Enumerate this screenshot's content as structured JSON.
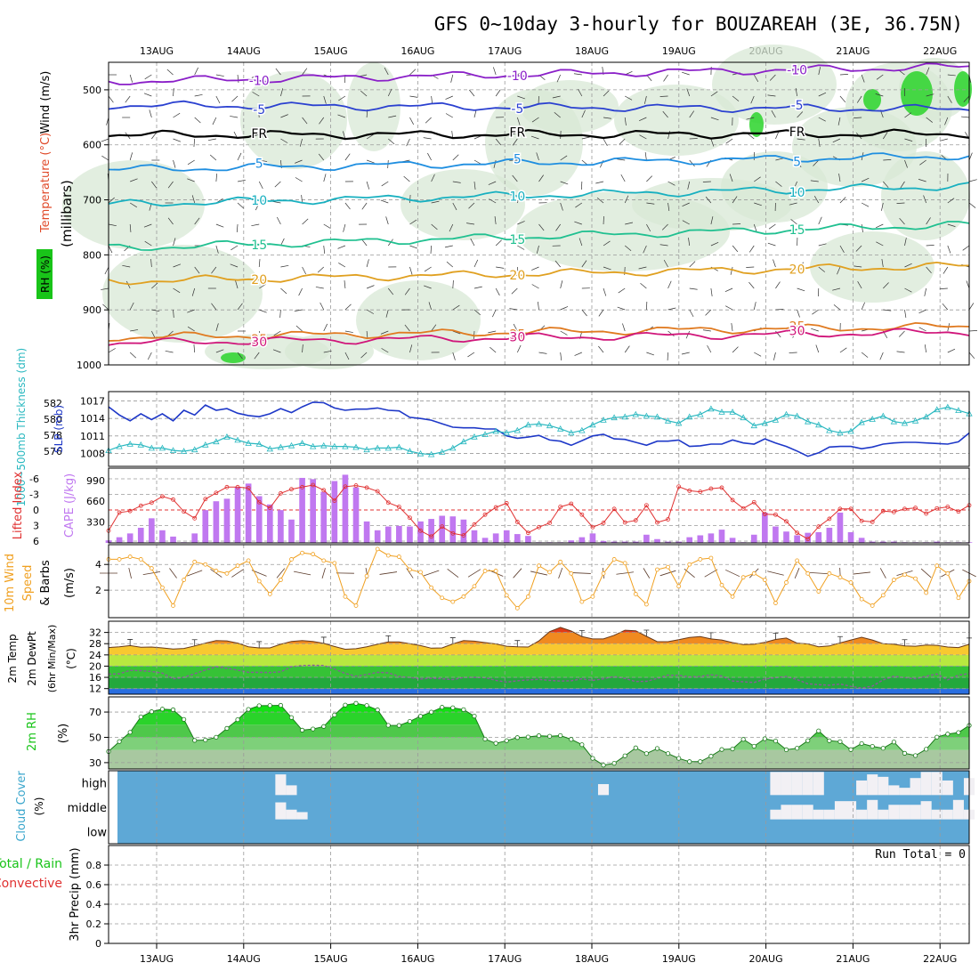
{
  "title": "GFS 0~10day 3-hourly for BOUZAREAH (3E, 36.75N)",
  "colors": {
    "wind_axis": "#000000",
    "temperature_axis": "#e04a2a",
    "rh_badge": "#19c419",
    "slp": "#1e38c8",
    "thickness": "#2ab8c0",
    "lifted_index": "#e03030",
    "cape": "#c078f0",
    "wind_speed": "#f0a020",
    "rh2m": "#19c419",
    "cloud": "#5ea8d6",
    "cloud_text": "#3aa6cc",
    "precip_total": "#19c419",
    "precip_convective": "#e03030"
  },
  "chart_data": {
    "type": "meteogram",
    "dates": [
      "13AUG",
      "14AUG",
      "15AUG",
      "16AUG",
      "17AUG",
      "18AUG",
      "19AUG",
      "20AUG",
      "21AUG",
      "22AUG"
    ],
    "time_steps": 81,
    "panels": [
      {
        "id": "upper-air",
        "type": "contour",
        "ylabel": "(millibars)",
        "ylabel_parts": [
          "Wind (m/s)",
          "Temperature (°C)",
          "RH (%)"
        ],
        "yticks": [
          500,
          600,
          700,
          800,
          900,
          1000
        ],
        "ylim": [
          450,
          1000
        ],
        "isotherm_labels": [
          "-10",
          "-5",
          "FR",
          "5",
          "10",
          "15",
          "20",
          "25",
          "30"
        ],
        "isotherms": [
          {
            "label": "-10",
            "color": "#8a1fc8",
            "p_start": 485,
            "p_end": 458
          },
          {
            "label": "-5",
            "color": "#2a40d0",
            "p_start": 528,
            "p_end": 535
          },
          {
            "label": "FR",
            "color": "#000000",
            "p_start": 582,
            "p_end": 580
          },
          {
            "label": "5",
            "color": "#1e8ee0",
            "p_start": 645,
            "p_end": 620
          },
          {
            "label": "10",
            "color": "#18b0c0",
            "p_start": 708,
            "p_end": 675
          },
          {
            "label": "15",
            "color": "#20c090",
            "p_start": 788,
            "p_end": 745
          },
          {
            "label": "20",
            "color": "#e0a020",
            "p_start": 848,
            "p_end": 820
          },
          {
            "label": "25",
            "color": "#e07a20",
            "p_start": 950,
            "p_end": 930
          },
          {
            "label": "30",
            "color": "#d0157a",
            "p_start": 960,
            "p_end": 940
          }
        ]
      },
      {
        "id": "slp-thickness",
        "type": "line",
        "ylabel_slp": "SLP (mb)",
        "ylabel_thk": "1000~500mb Thickness (dm)",
        "slp_ticks": [
          1008,
          1011,
          1014,
          1017
        ],
        "thk_ticks": [
          576,
          578,
          580,
          582
        ],
        "series": [
          {
            "name": "SLP",
            "values": [
              1016,
              1014.6,
              1013.6,
              1014.8,
              1013.8,
              1014.8,
              1013.6,
              1015.4,
              1014.6,
              1016.3,
              1015.4,
              1015.7,
              1014.9,
              1014.5,
              1014.3,
              1014.8,
              1015.7,
              1015,
              1016,
              1016.8,
              1016.7,
              1015.8,
              1015.4,
              1015.6,
              1015.6,
              1015.8,
              1015.4,
              1015.3,
              1014.2,
              1014,
              1013.7,
              1013.1,
              1012.5,
              1012.4,
              1012.4,
              1012.2,
              1012.2,
              1011,
              1010.6,
              1010.8,
              1011.1,
              1010.3,
              1010.1,
              1009.4,
              1010.2,
              1011,
              1011.3,
              1010.5,
              1010.4,
              1009.9,
              1009.4,
              1010.1,
              1010.1,
              1010.3,
              1009.2,
              1009.3,
              1009.6,
              1009.6,
              1010.3,
              1009.8,
              1009.6,
              1010.5,
              1009.8,
              1009.2,
              1008.4,
              1007.5,
              1008.1,
              1009.1,
              1009.2,
              1009.2,
              1008.8,
              1009.1,
              1009.6,
              1009.8,
              1009.9,
              1009.9,
              1009.8,
              1009.7,
              1009.6,
              1010,
              1011.5
            ]
          },
          {
            "name": "Thickness",
            "values": [
              576.1,
              576.6,
              576.9,
              576.8,
              576.4,
              576.4,
              576.1,
              576,
              576.2,
              576.8,
              577.2,
              577.8,
              577.4,
              577,
              576.9,
              576.3,
              576.5,
              576.7,
              577,
              576.6,
              576.7,
              576.6,
              576.6,
              576.5,
              576.2,
              576.4,
              576.4,
              576.5,
              576,
              575.7,
              575.6,
              575.9,
              576.4,
              577.2,
              577.8,
              578.1,
              578.5,
              578.3,
              578.6,
              579.3,
              579.4,
              579.2,
              578.8,
              578.3,
              578.6,
              579.3,
              579.9,
              580.2,
              580.3,
              580.6,
              580.4,
              580.3,
              579.8,
              579.5,
              580.3,
              580.6,
              581.3,
              580.9,
              580.9,
              580.2,
              579.2,
              579.5,
              579.9,
              580.6,
              580.4,
              579.7,
              579.3,
              578.6,
              578.3,
              578.5,
              579.6,
              580,
              580.4,
              579.7,
              579.5,
              579.8,
              580.3,
              581.2,
              581.5,
              581.1,
              580.7
            ]
          }
        ]
      },
      {
        "id": "li-cape",
        "type": "bar+line",
        "ylabel_li": "Lifted Index",
        "ylabel_cape": "CAPE (J/kg)",
        "li_ticks": [
          "-6",
          "-3",
          "0",
          "3",
          "6"
        ],
        "cape_ticks": [
          "330",
          "660",
          "990"
        ],
        "lifted_index": [
          4,
          0.5,
          0.2,
          -0.8,
          -1.4,
          -2.6,
          -2,
          0.3,
          1.6,
          -2.1,
          -3.3,
          -4.4,
          -4.4,
          -4.2,
          -1.5,
          -0.4,
          -3.2,
          -4,
          -4.4,
          -4.8,
          -3.8,
          -1.8,
          -4.5,
          -4.7,
          -4.3,
          -3.6,
          -1.4,
          -0.6,
          1.5,
          4,
          5.1,
          3.2,
          4.5,
          4.9,
          2.8,
          0.9,
          -0.5,
          -1.3,
          2.3,
          4.4,
          3.3,
          2.5,
          -0.6,
          -1.2,
          0.9,
          3.3,
          2.5,
          -0.2,
          2.4,
          2,
          -0.9,
          2.4,
          1.8,
          -4.5,
          -3.7,
          -3.5,
          -4.1,
          -4.3,
          -1.9,
          -0.3,
          -1.5,
          0.8,
          0.9,
          2.2,
          4.4,
          5.6,
          3.2,
          1.7,
          -0.2,
          -0.2,
          2.1,
          2.3,
          0.2,
          0.4,
          -0.2,
          -0.4,
          0.7,
          -0.3,
          -0.6,
          0.3,
          -0.9
        ],
        "cape": [
          40,
          90,
          150,
          240,
          390,
          200,
          100,
          10,
          150,
          520,
          660,
          700,
          880,
          940,
          740,
          610,
          520,
          370,
          1030,
          1010,
          810,
          980,
          1080,
          880,
          340,
          200,
          260,
          270,
          260,
          340,
          380,
          430,
          420,
          370,
          200,
          80,
          150,
          200,
          140,
          110,
          10,
          10,
          10,
          40,
          90,
          150,
          30,
          20,
          20,
          20,
          130,
          60,
          20,
          20,
          90,
          120,
          150,
          210,
          80,
          10,
          130,
          480,
          260,
          180,
          120,
          160,
          170,
          240,
          480,
          170,
          80,
          20,
          20,
          20,
          10,
          10,
          10,
          20,
          10,
          10,
          10
        ]
      },
      {
        "id": "wind-10m",
        "type": "line",
        "ylabel": "10m Wind Speed & Barbs (m/s)",
        "yticks": [
          2,
          4
        ],
        "ylim": [
          0,
          5.4
        ],
        "values": [
          4.4,
          4.4,
          4.6,
          4.4,
          3.7,
          2.2,
          0.8,
          2.8,
          4.2,
          4,
          3.5,
          3.3,
          3.9,
          4.3,
          2.7,
          1.7,
          2.8,
          4.4,
          4.9,
          4.8,
          4.3,
          4.1,
          1.5,
          0.8,
          3.1,
          5.2,
          4.7,
          4.6,
          3.6,
          3.4,
          2.2,
          1.4,
          1.1,
          1.5,
          2.3,
          3.5,
          3.5,
          1.6,
          0.6,
          1.5,
          3.9,
          3.4,
          4.2,
          3.3,
          1.1,
          1.5,
          3.3,
          4.4,
          4.1,
          1.7,
          0.9,
          3.6,
          3.8,
          2.3,
          4,
          4.4,
          4.5,
          2.4,
          1.5,
          3,
          3.3,
          2.8,
          1,
          2.6,
          4.3,
          3.3,
          1.9,
          3.3,
          3,
          2.6,
          1.3,
          0.8,
          1.6,
          2.8,
          3.2,
          2.9,
          1.8,
          3.9,
          3.3,
          1.4,
          2.7
        ]
      },
      {
        "id": "temp-2m",
        "type": "area",
        "ylabel": "2m Temp 2m DewPt (6hr Min/Max) (°C)",
        "yticks": [
          12,
          16,
          20,
          24,
          28,
          32
        ],
        "ylim": [
          10,
          36
        ],
        "temperature": [
          26.6,
          26.9,
          27.3,
          26.7,
          26.8,
          26.5,
          26.1,
          26.3,
          27.2,
          28.2,
          29.1,
          29,
          28.2,
          26.9,
          26.5,
          26.5,
          27.8,
          28.8,
          29.1,
          28.8,
          28.1,
          27,
          26,
          26.2,
          26.9,
          27.8,
          28.6,
          28.6,
          28,
          27.3,
          26.4,
          26.5,
          27.9,
          29.1,
          28.9,
          28.4,
          27.9,
          27.1,
          26.9,
          26.8,
          29,
          32.3,
          33.8,
          32.5,
          30.5,
          29.7,
          29.7,
          31,
          32.8,
          32.6,
          30.6,
          28.7,
          28.7,
          29.4,
          30.2,
          30.5,
          29.7,
          29.3,
          28.4,
          27.7,
          27.8,
          28.5,
          29.5,
          30,
          28.2,
          27.9,
          26.9,
          27.2,
          28.3,
          29.3,
          30.3,
          29.3,
          28,
          27.8,
          27.2,
          27.1,
          27.5,
          27.4,
          26.8,
          26.6,
          27.8
        ],
        "dewpoint": [
          17.1,
          17.3,
          18.5,
          18.4,
          18.1,
          17.5,
          15.5,
          16,
          17.3,
          18.6,
          19.8,
          19.2,
          18.6,
          17.8,
          17.8,
          17.7,
          18,
          19.8,
          20.2,
          20.3,
          20.2,
          19,
          17.4,
          16.4,
          17,
          17.8,
          17.6,
          16.3,
          16,
          15.4,
          15.7,
          15.5,
          15.2,
          16,
          16,
          15.9,
          14.9,
          14.3,
          14.8,
          15.1,
          15.3,
          14.9,
          14.7,
          14.8,
          15.5,
          14.9,
          15.5,
          16.3,
          15.6,
          14.5,
          14.6,
          15.6,
          16.8,
          16.7,
          16.2,
          16.3,
          16.9,
          16.5,
          14.7,
          14.4,
          14.2,
          15.4,
          15.9,
          16.3,
          15.2,
          13.7,
          13.4,
          13.2,
          13.6,
          12.8,
          12.2,
          12.9,
          15.1,
          16.4,
          15.9,
          15.5,
          16.4,
          17.2,
          15.1,
          16.8,
          17.4
        ]
      },
      {
        "id": "rh-2m",
        "type": "area",
        "ylabel": "2m RH (%)",
        "yticks": [
          30,
          50,
          70
        ],
        "ylim": [
          25,
          82
        ],
        "values": [
          38.8,
          46.7,
          54,
          66.2,
          70.3,
          72.3,
          71.8,
          64.2,
          47.6,
          47.9,
          50.1,
          57.1,
          64,
          72.1,
          75,
          75.2,
          75.3,
          65.7,
          55.7,
          56.6,
          58.6,
          67.7,
          75.5,
          76.9,
          75.2,
          71.7,
          59.5,
          59.4,
          62.6,
          66.7,
          70,
          73.8,
          73.4,
          71.9,
          66.8,
          48.6,
          45.3,
          47.4,
          49.8,
          50.3,
          51.3,
          50.9,
          51.4,
          48.4,
          44.2,
          33.4,
          28,
          29.5,
          35.4,
          41.7,
          37.2,
          41.2,
          37.2,
          33.4,
          30.8,
          30.8,
          35.1,
          40.4,
          40.8,
          48.4,
          43,
          48.9,
          47.1,
          40.2,
          41.4,
          47.4,
          55.1,
          47.3,
          46.6,
          40.3,
          45.1,
          42.9,
          41.4,
          46.3,
          37.4,
          35.6,
          40.6,
          50.2,
          52.6,
          53.8,
          59.4
        ]
      },
      {
        "id": "cloud-cover",
        "type": "heatmap",
        "ylabel": "Cloud Cover (%)",
        "levels": [
          "high",
          "middle",
          "low"
        ],
        "high": [
          0,
          0,
          0,
          0,
          0,
          0,
          0,
          0,
          0,
          0,
          0,
          0,
          0,
          0,
          0,
          0,
          85,
          40,
          0,
          0,
          0,
          0,
          0,
          0,
          0,
          0,
          0,
          0,
          0,
          0,
          0,
          0,
          0,
          0,
          0,
          0,
          0,
          0,
          0,
          0,
          0,
          0,
          0,
          0,
          0,
          0,
          45,
          0,
          0,
          0,
          0,
          0,
          0,
          0,
          0,
          0,
          0,
          0,
          0,
          0,
          0,
          0,
          95,
          95,
          95,
          95,
          95,
          0,
          0,
          0,
          60,
          85,
          75,
          40,
          30,
          70,
          95,
          95,
          60,
          0,
          70
        ],
        "middle": [
          0,
          0,
          0,
          0,
          0,
          0,
          0,
          0,
          0,
          0,
          0,
          0,
          0,
          0,
          0,
          0,
          70,
          40,
          30,
          0,
          0,
          0,
          0,
          0,
          0,
          0,
          0,
          0,
          0,
          0,
          0,
          0,
          0,
          0,
          0,
          0,
          0,
          0,
          0,
          0,
          0,
          0,
          0,
          0,
          0,
          0,
          0,
          0,
          0,
          0,
          0,
          0,
          0,
          0,
          0,
          0,
          0,
          0,
          0,
          0,
          0,
          0,
          40,
          60,
          60,
          60,
          40,
          40,
          75,
          75,
          40,
          80,
          40,
          60,
          60,
          60,
          75,
          40,
          40,
          80,
          40
        ],
        "low": [
          0,
          0,
          0,
          0,
          0,
          0,
          0,
          0,
          0,
          0,
          0,
          0,
          0,
          0,
          0,
          0,
          0,
          0,
          0,
          0,
          0,
          0,
          0,
          0,
          0,
          0,
          0,
          0,
          0,
          0,
          0,
          0,
          0,
          0,
          0,
          0,
          0,
          0,
          0,
          0,
          0,
          0,
          0,
          0,
          0,
          0,
          0,
          0,
          0,
          0,
          0,
          0,
          0,
          0,
          0,
          0,
          0,
          0,
          0,
          0,
          0,
          0,
          0,
          0,
          0,
          0,
          0,
          0,
          0,
          0,
          0,
          0,
          0,
          0,
          0,
          0,
          0,
          0,
          0,
          0,
          0
        ]
      },
      {
        "id": "precip",
        "type": "bar",
        "ylabel": "3hr Precip (mm)",
        "legend": [
          "Total / Rain",
          "Convective"
        ],
        "yticks": [
          "0",
          "0.2",
          "0.4",
          "0.6",
          "0.8"
        ],
        "ylim": [
          0,
          1
        ],
        "run_total": "Run Total = 0",
        "values": []
      }
    ]
  }
}
